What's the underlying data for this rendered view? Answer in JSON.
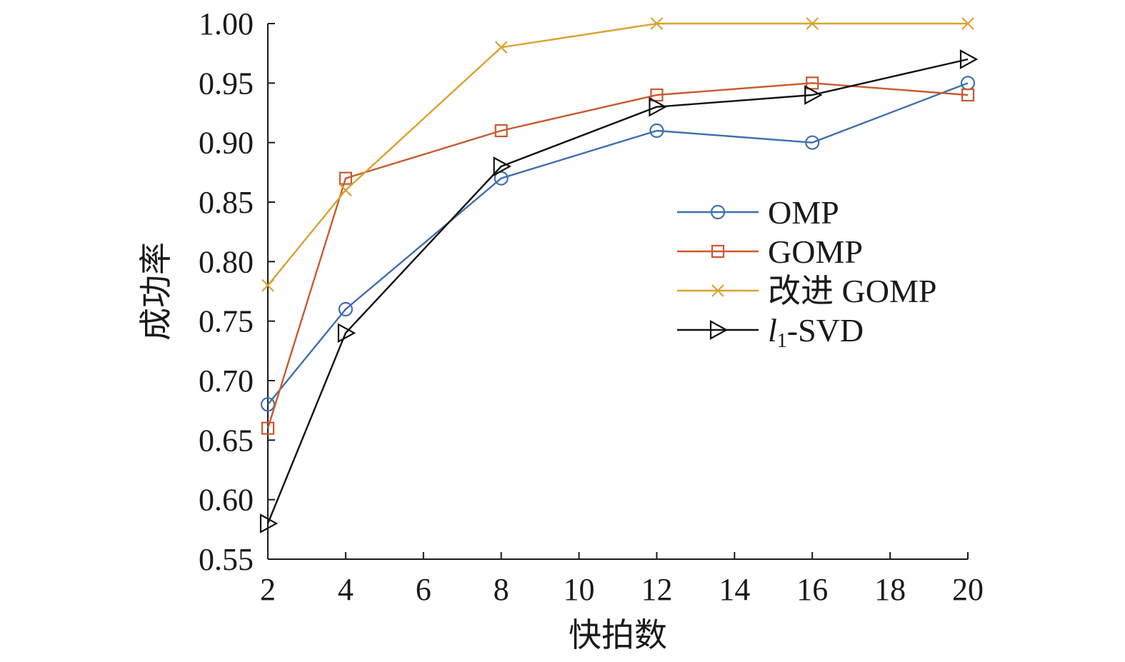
{
  "chart_data": {
    "type": "line",
    "title": "",
    "xlabel": "快拍数",
    "ylabel": "成功率",
    "x": [
      2,
      4,
      8,
      12,
      16,
      20
    ],
    "xlim": [
      2,
      20
    ],
    "ylim": [
      0.55,
      1.0
    ],
    "xticks": [
      2,
      4,
      6,
      8,
      10,
      12,
      14,
      16,
      18,
      20
    ],
    "yticks": [
      0.55,
      0.6,
      0.65,
      0.7,
      0.75,
      0.8,
      0.85,
      0.9,
      0.95,
      1.0
    ],
    "ytick_labels": [
      "0.55",
      "0.60",
      "0.65",
      "0.70",
      "0.75",
      "0.80",
      "0.85",
      "0.90",
      "0.95",
      "1.00"
    ],
    "grid": false,
    "legend_position": "right",
    "series": [
      {
        "name": "OMP",
        "label_main": "OMP",
        "marker": "circle",
        "color": "#3f6fae",
        "values": [
          0.68,
          0.76,
          0.87,
          0.91,
          0.9,
          0.95
        ]
      },
      {
        "name": "GOMP",
        "label_main": "GOMP",
        "marker": "square",
        "color": "#c85a2e",
        "values": [
          0.66,
          0.87,
          0.91,
          0.94,
          0.95,
          0.94
        ]
      },
      {
        "name": "改进 GOMP",
        "label_main": "改进 GOMP",
        "marker": "x",
        "color": "#daa231",
        "values": [
          0.78,
          0.86,
          0.98,
          1.0,
          1.0,
          1.0
        ]
      },
      {
        "name": "l1-SVD",
        "label_main": "l",
        "label_sub": "1",
        "label_tail": "-SVD",
        "marker": "triangle-right",
        "color": "#111111",
        "values": [
          0.58,
          0.74,
          0.88,
          0.93,
          0.94,
          0.97
        ]
      }
    ]
  }
}
